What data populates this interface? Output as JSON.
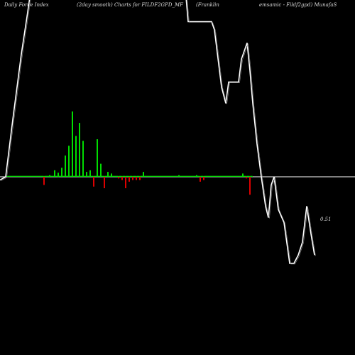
{
  "header": {
    "left": "Daily Force  Index",
    "center": "(2day smooth) Charts for FILDF2GPD_MF",
    "mid": "(Franklin",
    "right": "emsamic  -  Fildf2gpd) MunafaS"
  },
  "chart_data": {
    "type": "bar",
    "title": "",
    "xlabel": "",
    "ylabel": "",
    "ylim": [
      -1,
      1
    ],
    "colors": {
      "positive": "#00dd00",
      "negative": "#dd0000",
      "line": "#ffffff",
      "zero_line": "#ffffff",
      "background": "#000000"
    },
    "last_value_label": "0.51",
    "bars": [
      0.005,
      0.005,
      0.005,
      0.005,
      0.005,
      0.005,
      0.005,
      0.005,
      0.005,
      0.005,
      0.005,
      0.005,
      0.005,
      0.005,
      0.005,
      0.005,
      0.005,
      0.005,
      0.005,
      0.005,
      0.005,
      0.005,
      0.005,
      0.005,
      0.005,
      0.005,
      0.005,
      0.005,
      0.005,
      0.005,
      0.005,
      0.005,
      0.005,
      0.005,
      0.005,
      0.005,
      0.005,
      0.005,
      0.005,
      0.005,
      0.005,
      0.005,
      0.005,
      0.005,
      0.005,
      0.005,
      0.005,
      0.005,
      0.005,
      0.005,
      0.005,
      0.005,
      0.005,
      -0.05,
      0.005,
      0.005,
      0.005,
      0.005,
      0.005,
      0.005,
      0.005,
      0.01,
      0.005,
      0.005,
      0.005,
      0.005,
      0.005,
      0.005,
      0.04,
      0.005,
      0.005,
      0.005,
      0.005,
      0.025,
      0.005,
      0.005,
      0.005,
      0.005,
      0.055,
      0.005,
      0.005,
      0.005,
      0.005,
      0.13,
      0.005,
      0.005,
      0.005,
      0.005,
      0.19,
      0.005,
      0.005,
      0.005,
      0.005,
      0.4,
      0.005,
      0.005,
      0.005,
      0.005,
      0.25,
      0.005,
      0.005,
      0.005,
      0.005,
      0.33,
      0.005,
      0.005,
      0.005,
      0.005,
      0.22,
      0.005,
      0.005,
      0.005,
      0.005,
      0.03,
      0.005,
      0.005,
      0.005,
      0.005,
      0.04,
      0.005,
      0.005,
      0.005,
      0.005,
      -0.06,
      0.005,
      0.005,
      0.005,
      0.005,
      0.23,
      0.005,
      0.005,
      0.005,
      0.005,
      0.08,
      0.005,
      0.005,
      0.005,
      0.005,
      -0.07,
      0.005,
      0.005,
      0.005,
      0.005,
      0.03,
      0.005,
      0.005,
      0.005,
      0.005,
      0.02,
      0.005,
      0.005,
      0.005,
      0.005,
      0.005,
      0.005,
      0.005,
      0.005,
      0.005,
      -0.01,
      0.005,
      0.005,
      0.005,
      0.005,
      -0.02,
      0.005,
      0.005,
      0.005,
      0.005,
      -0.07,
      0.005,
      0.005,
      0.005,
      0.005,
      -0.03,
      0.005,
      0.005,
      0.005,
      0.005,
      -0.02,
      0.005,
      0.005,
      0.005,
      0.005,
      -0.02,
      0.005,
      0.005,
      0.005,
      0.005,
      -0.02,
      0.005,
      0.005,
      0.005,
      0.005,
      0.03,
      0.005,
      0.005,
      0.005,
      0.005,
      0.005,
      0.005,
      0.005,
      0.005,
      0.005,
      0.005,
      0.005,
      0.005,
      0.005,
      0.005,
      0.005,
      0.005,
      0.005,
      0.005,
      0.005,
      0.005,
      0.005,
      0.005,
      0.005,
      0.005,
      0.005,
      0.005,
      0.005,
      0.005,
      0.005,
      0.005,
      0.005,
      0.005,
      0.005,
      0.005,
      0.005,
      0.005,
      0.005,
      0.005,
      0.005,
      0.005,
      0.005,
      0.005,
      0.005,
      0.005,
      0.005,
      0.005,
      0.005,
      0.005,
      0.005,
      0.01,
      0.005,
      0.005,
      0.005,
      0.005,
      0.005,
      0.005,
      0.005,
      0.005,
      0.005,
      0.005,
      0.005,
      0.005,
      0.005,
      0.005,
      0.005,
      0.005,
      0.005,
      0.005,
      0.005,
      0.005,
      0.005,
      0.005,
      0.005,
      0.005,
      0.01,
      0.005,
      0.005,
      0.005,
      0.005,
      -0.03,
      0.005,
      0.005,
      0.005,
      0.005,
      -0.02,
      0.005,
      0.005,
      0.005,
      0.005,
      0.005,
      0.005,
      0.005,
      0.005,
      0.005,
      0.005,
      0.005,
      0.005,
      0.005,
      0.005,
      0.005,
      0.005,
      0.005,
      0.005,
      0.005,
      0.005,
      0.005,
      0.005,
      0.005,
      0.005,
      0.005,
      0.005,
      0.005,
      0.005,
      0.005,
      0.005,
      0.005,
      0.005,
      0.005,
      0.005,
      0.005,
      0.005,
      0.005,
      0.005,
      0.005,
      0.005,
      0.005,
      0.005,
      0.005,
      0.005,
      0.005,
      0.005,
      0.005,
      0.005,
      0.005,
      0.005,
      0.005,
      0.005,
      0.005,
      0.005,
      0.02,
      0.005,
      0.005,
      0.005,
      0.005,
      -0.01,
      0.005,
      0.005,
      0.005,
      0.005,
      -0.11,
      0.005,
      0.005,
      0.005
    ],
    "line": [
      [
        0,
        -0.02
      ],
      [
        8,
        0.0
      ],
      [
        18,
        0.35
      ],
      [
        30,
        0.75
      ],
      [
        38,
        0.98
      ],
      [
        42,
        1.1
      ],
      [
        262,
        1.1
      ],
      [
        265,
        0.95
      ],
      [
        298,
        0.95
      ],
      [
        302,
        0.9
      ],
      [
        312,
        0.55
      ],
      [
        318,
        0.45
      ],
      [
        322,
        0.58
      ],
      [
        336,
        0.58
      ],
      [
        340,
        0.72
      ],
      [
        348,
        0.82
      ],
      [
        352,
        0.65
      ],
      [
        356,
        0.45
      ],
      [
        362,
        0.2
      ],
      [
        368,
        0.0
      ],
      [
        374,
        -0.18
      ],
      [
        378,
        -0.25
      ],
      [
        382,
        -0.05
      ],
      [
        386,
        0.0
      ],
      [
        392,
        -0.2
      ],
      [
        400,
        -0.28
      ],
      [
        408,
        -0.53
      ],
      [
        414,
        -0.53
      ],
      [
        420,
        -0.48
      ],
      [
        426,
        -0.4
      ],
      [
        432,
        -0.18
      ],
      [
        438,
        -0.35
      ],
      [
        443,
        -0.48
      ]
    ]
  }
}
